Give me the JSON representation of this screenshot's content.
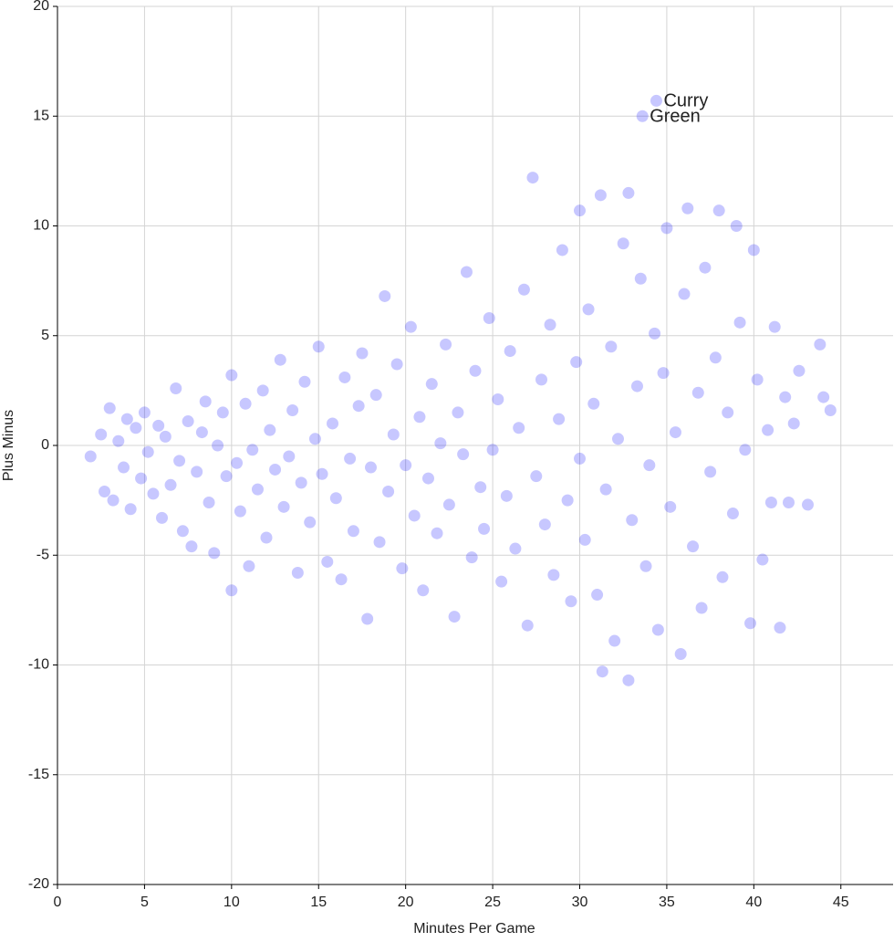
{
  "chart_data": {
    "type": "scatter",
    "xlabel": "Minutes Per Game",
    "ylabel": "Plus Minus",
    "color": "#0000ff",
    "grid": true,
    "xlim": [
      0,
      48
    ],
    "ylim": [
      -20,
      20
    ],
    "xticks": [
      0,
      5,
      10,
      15,
      20,
      25,
      30,
      35,
      40,
      45
    ],
    "yticks": [
      -20,
      -15,
      -10,
      -5,
      0,
      5,
      10,
      15,
      20
    ],
    "x": [
      1.9,
      2.5,
      2.7,
      3.0,
      3.2,
      3.5,
      3.8,
      4.0,
      4.2,
      4.5,
      4.8,
      5.0,
      5.2,
      5.5,
      5.8,
      6.0,
      6.2,
      6.5,
      6.8,
      7.0,
      7.2,
      7.5,
      7.7,
      8.0,
      8.3,
      8.5,
      8.7,
      9.0,
      9.2,
      9.5,
      9.7,
      10.0,
      10.0,
      10.3,
      10.5,
      10.8,
      11.0,
      11.2,
      11.5,
      11.8,
      12.0,
      12.2,
      12.5,
      12.8,
      13.0,
      13.3,
      13.5,
      13.8,
      14.0,
      14.2,
      14.5,
      14.8,
      15.0,
      15.2,
      15.5,
      15.8,
      16.0,
      16.3,
      16.5,
      16.8,
      17.0,
      17.3,
      17.5,
      17.8,
      18.0,
      18.3,
      18.5,
      18.8,
      19.0,
      19.3,
      19.5,
      19.8,
      20.0,
      20.3,
      20.5,
      20.8,
      21.0,
      21.3,
      21.5,
      21.8,
      22.0,
      22.3,
      22.5,
      22.8,
      23.0,
      23.3,
      23.5,
      23.8,
      24.0,
      24.3,
      24.5,
      24.8,
      25.0,
      25.3,
      25.5,
      25.8,
      26.0,
      26.3,
      26.5,
      26.8,
      27.0,
      27.3,
      27.5,
      27.8,
      28.0,
      28.3,
      28.5,
      28.8,
      29.0,
      29.3,
      29.5,
      29.8,
      30.0,
      30.0,
      30.3,
      30.5,
      30.8,
      31.0,
      31.2,
      31.3,
      31.5,
      31.8,
      32.0,
      32.2,
      32.5,
      32.8,
      32.8,
      33.0,
      33.3,
      33.5,
      33.8,
      34.0,
      34.3,
      34.5,
      34.8,
      35.0,
      35.2,
      35.5,
      35.8,
      36.0,
      36.2,
      36.5,
      36.8,
      37.0,
      37.2,
      37.5,
      37.8,
      38.0,
      38.2,
      38.5,
      38.8,
      39.0,
      39.2,
      39.5,
      39.8,
      40.0,
      40.2,
      40.5,
      40.8,
      41.0,
      41.2,
      41.5,
      41.8,
      42.0,
      42.3,
      42.6,
      43.1,
      43.8,
      44.0,
      44.4,
      34.4,
      33.6
    ],
    "values": [
      -0.5,
      0.5,
      -2.1,
      1.7,
      -2.5,
      0.2,
      -1.0,
      1.2,
      -2.9,
      0.8,
      -1.5,
      1.5,
      -0.3,
      -2.2,
      0.9,
      -3.3,
      0.4,
      -1.8,
      2.6,
      -0.7,
      -3.9,
      1.1,
      -4.6,
      -1.2,
      0.6,
      2.0,
      -2.6,
      -4.9,
      0.0,
      1.5,
      -1.4,
      3.2,
      -6.6,
      -0.8,
      -3.0,
      1.9,
      -5.5,
      -0.2,
      -2.0,
      2.5,
      -4.2,
      0.7,
      -1.1,
      3.9,
      -2.8,
      -0.5,
      1.6,
      -5.8,
      -1.7,
      2.9,
      -3.5,
      0.3,
      4.5,
      -1.3,
      -5.3,
      1.0,
      -2.4,
      -6.1,
      3.1,
      -0.6,
      -3.9,
      1.8,
      4.2,
      -7.9,
      -1.0,
      2.3,
      -4.4,
      6.8,
      -2.1,
      0.5,
      3.7,
      -5.6,
      -0.9,
      5.4,
      -3.2,
      1.3,
      -6.6,
      -1.5,
      2.8,
      -4.0,
      0.1,
      4.6,
      -2.7,
      -7.8,
      1.5,
      -0.4,
      7.9,
      -5.1,
      3.4,
      -1.9,
      -3.8,
      5.8,
      -0.2,
      2.1,
      -6.2,
      -2.3,
      4.3,
      -4.7,
      0.8,
      7.1,
      -8.2,
      12.2,
      -1.4,
      3.0,
      -3.6,
      5.5,
      -5.9,
      1.2,
      8.9,
      -2.5,
      -7.1,
      3.8,
      10.7,
      -0.6,
      -4.3,
      6.2,
      1.9,
      -6.8,
      11.4,
      -10.3,
      -2.0,
      4.5,
      -8.9,
      0.3,
      9.2,
      -10.7,
      11.5,
      -3.4,
      2.7,
      7.6,
      -5.5,
      -0.9,
      5.1,
      -8.4,
      3.3,
      9.9,
      -2.8,
      0.6,
      -9.5,
      6.9,
      10.8,
      -4.6,
      2.4,
      -7.4,
      8.1,
      -1.2,
      4.0,
      10.7,
      -6.0,
      1.5,
      -3.1,
      10.0,
      5.6,
      -0.2,
      -8.1,
      8.9,
      3.0,
      -5.2,
      0.7,
      -2.6,
      5.4,
      -8.3,
      2.2,
      -2.6,
      1.0,
      3.4,
      -2.7,
      4.6,
      2.2,
      1.6,
      15.7,
      15.0
    ],
    "annotations": [
      {
        "text": "Curry",
        "x": 34.4,
        "y": 15.7
      },
      {
        "text": "Green",
        "x": 33.6,
        "y": 15.0
      }
    ]
  }
}
